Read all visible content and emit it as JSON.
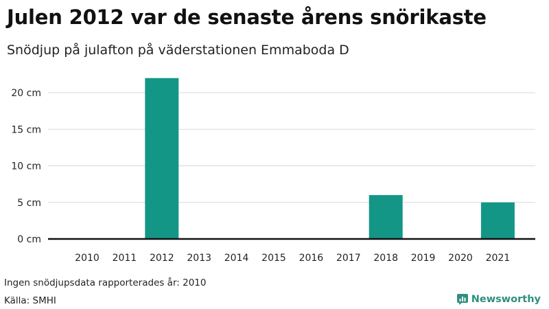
{
  "title": "Julen 2012 var de senaste årens snörikaste",
  "subtitle": "Snödjup på julafton på väderstationen Emmaboda D",
  "note": "Ingen snödjupsdata rapporterades år: 2010",
  "source": "Källa: SMHI",
  "brand": {
    "name": "Newsworthy",
    "icon": "newsworthy-logo-icon",
    "color": "#2f8f7f"
  },
  "chart_data": {
    "type": "bar",
    "categories": [
      "2010",
      "2011",
      "2012",
      "2013",
      "2014",
      "2015",
      "2016",
      "2017",
      "2018",
      "2019",
      "2020",
      "2021"
    ],
    "values": [
      null,
      0,
      22,
      0,
      0,
      0,
      0,
      0,
      6,
      0,
      0,
      5
    ],
    "ylim": [
      0,
      22
    ],
    "yticks": [
      0,
      5,
      10,
      15,
      20
    ],
    "ytick_labels": [
      "0 cm",
      "5 cm",
      "10 cm",
      "15 cm",
      "20 cm"
    ],
    "bar_color": "#149686",
    "grid": true
  }
}
